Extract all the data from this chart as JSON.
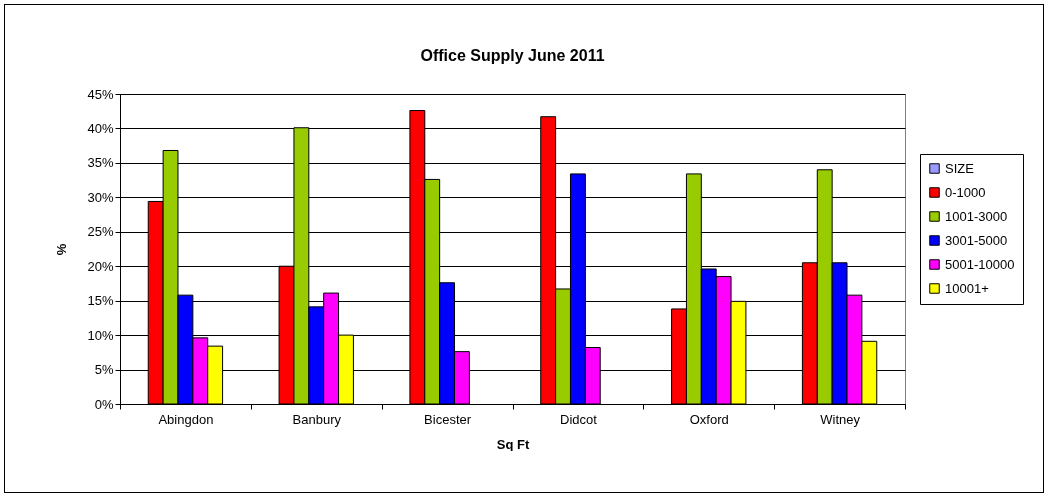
{
  "chart_data": {
    "type": "bar",
    "title": "Office Supply June 2011",
    "xlabel": "Sq Ft",
    "ylabel": "%",
    "categories": [
      "Abingdon",
      "Banbury",
      "Bicester",
      "Didcot",
      "Oxford",
      "Witney"
    ],
    "series": [
      {
        "name": "SIZE",
        "color": "#9999ff",
        "values": [
          null,
          null,
          null,
          null,
          null,
          null
        ]
      },
      {
        "name": "0-1000",
        "color": "#ff0000",
        "values": [
          29.4,
          20.0,
          42.6,
          41.7,
          13.8,
          20.5
        ]
      },
      {
        "name": "1001-3000",
        "color": "#99cc00",
        "values": [
          36.8,
          40.1,
          32.6,
          16.7,
          33.4,
          34.0
        ]
      },
      {
        "name": "3001-5000",
        "color": "#0000ff",
        "values": [
          15.8,
          14.1,
          17.6,
          33.4,
          19.6,
          20.5
        ]
      },
      {
        "name": "5001-10000",
        "color": "#ff00ff",
        "values": [
          9.6,
          16.1,
          7.6,
          8.2,
          18.5,
          15.8
        ]
      },
      {
        "name": "10001+",
        "color": "#ffff00",
        "values": [
          8.4,
          10.0,
          null,
          null,
          14.9,
          9.1
        ]
      }
    ],
    "ylim": [
      0,
      45
    ],
    "yticks": [
      {
        "value": 0,
        "label": "0%"
      },
      {
        "value": 5,
        "label": "5%"
      },
      {
        "value": 10,
        "label": "10%"
      },
      {
        "value": 15,
        "label": "15%"
      },
      {
        "value": 20,
        "label": "20%"
      },
      {
        "value": 25,
        "label": "25%"
      },
      {
        "value": 30,
        "label": "30%"
      },
      {
        "value": 35,
        "label": "35%"
      },
      {
        "value": 40,
        "label": "40%"
      },
      {
        "value": 45,
        "label": "45%"
      }
    ],
    "grid": "y",
    "legend": "right"
  }
}
